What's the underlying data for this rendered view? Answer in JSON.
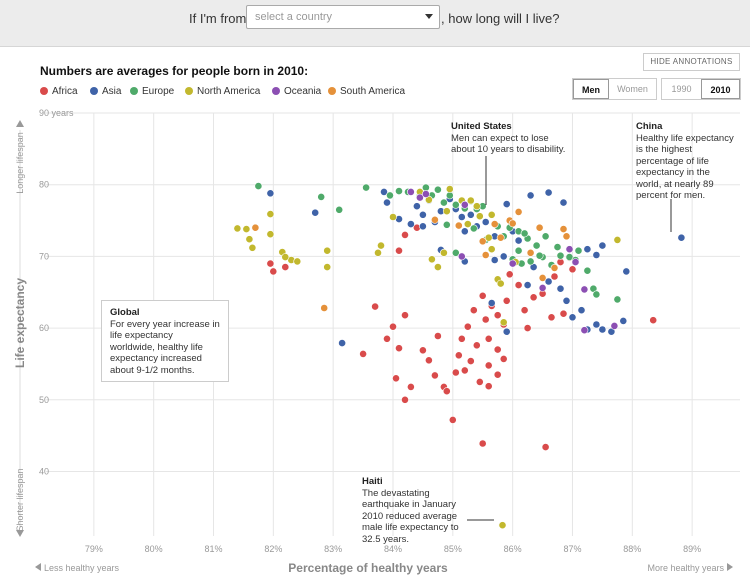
{
  "header": {
    "prefix": "If I'm from",
    "select_placeholder": "select a country",
    "suffix": ", how long will I live?"
  },
  "subtitle": "Numbers are averages for people born in 2010:",
  "controls": {
    "hide_annotations": "HIDE ANNOTATIONS",
    "sex": [
      "Men",
      "Women"
    ],
    "sex_selected": "Men",
    "years": [
      "1990",
      "2010"
    ],
    "year_selected": "2010"
  },
  "colors": {
    "Africa": "#d94b4b",
    "Asia": "#3f63a8",
    "Europe": "#4faa6a",
    "North America": "#c2b82e",
    "Oceania": "#8c4fb3",
    "South America": "#e5913a"
  },
  "annotations": {
    "us": {
      "title": "United States",
      "text": "Men can expect to lose about 10 years to disability."
    },
    "china": {
      "title": "China",
      "text": "Healthy life expectancy is the highest percentage of life expectancy in the world, at nearly 89 percent for men."
    },
    "global": {
      "title": "Global",
      "text": "For every year increase in life expectancy worldwide, healthy life expectancy increased about 9-1/2 months."
    },
    "haiti": {
      "title": "Haiti",
      "text": "The devastating earthquake in January 2010 reduced average male life expectancy to 32.5 years."
    }
  },
  "chart_data": {
    "type": "scatter",
    "xlabel": "Percentage of healthy years",
    "ylabel": "Life expectancy",
    "x_left_note": "Less healthy years",
    "x_right_note": "More healthy years",
    "y_top_note": "Longer lifespan",
    "y_bottom_note": "Shorter lifespan",
    "xlim": [
      78.2,
      89.8
    ],
    "ylim": [
      31,
      90
    ],
    "xticks": [
      79,
      80,
      81,
      82,
      83,
      84,
      85,
      86,
      87,
      88,
      89
    ],
    "xtick_labels": [
      "79%",
      "80%",
      "81%",
      "82%",
      "83%",
      "84%",
      "85%",
      "86%",
      "87%",
      "88%",
      "89%"
    ],
    "yticks": [
      40,
      50,
      60,
      70,
      80,
      90
    ],
    "ytick_labels": [
      "40",
      "50",
      "60",
      "70",
      "80",
      "90 years"
    ],
    "legend": [
      "Africa",
      "Asia",
      "Europe",
      "North America",
      "Oceania",
      "South America"
    ],
    "series": [
      {
        "name": "Africa",
        "points": [
          [
            81.95,
            69.0
          ],
          [
            82.2,
            68.5
          ],
          [
            82.0,
            67.9
          ],
          [
            83.7,
            63.0
          ],
          [
            83.5,
            56.4
          ],
          [
            83.9,
            58.5
          ],
          [
            84.0,
            60.2
          ],
          [
            84.1,
            57.2
          ],
          [
            84.2,
            61.8
          ],
          [
            84.05,
            53.0
          ],
          [
            84.3,
            51.8
          ],
          [
            84.5,
            56.9
          ],
          [
            84.6,
            55.5
          ],
          [
            84.75,
            58.9
          ],
          [
            84.2,
            50.0
          ],
          [
            84.85,
            51.8
          ],
          [
            84.9,
            51.2
          ],
          [
            84.7,
            53.4
          ],
          [
            85.05,
            53.8
          ],
          [
            85.2,
            54.1
          ],
          [
            85.1,
            56.2
          ],
          [
            85.3,
            55.4
          ],
          [
            85.15,
            58.5
          ],
          [
            85.4,
            57.6
          ],
          [
            85.6,
            58.5
          ],
          [
            85.75,
            57.0
          ],
          [
            85.25,
            60.2
          ],
          [
            85.55,
            61.2
          ],
          [
            85.65,
            63.1
          ],
          [
            85.85,
            60.5
          ],
          [
            85.75,
            61.8
          ],
          [
            85.9,
            63.8
          ],
          [
            85.35,
            62.5
          ],
          [
            85.5,
            64.5
          ],
          [
            85.0,
            47.2
          ],
          [
            85.5,
            43.9
          ],
          [
            85.6,
            54.8
          ],
          [
            85.75,
            53.5
          ],
          [
            85.85,
            55.7
          ],
          [
            85.6,
            51.9
          ],
          [
            86.55,
            43.4
          ],
          [
            85.45,
            52.5
          ],
          [
            86.2,
            62.5
          ],
          [
            86.35,
            64.3
          ],
          [
            86.5,
            64.8
          ],
          [
            86.1,
            66.0
          ],
          [
            85.95,
            67.5
          ],
          [
            86.7,
            67.2
          ],
          [
            86.65,
            61.5
          ],
          [
            88.35,
            61.1
          ],
          [
            86.85,
            62.0
          ],
          [
            86.25,
            60.0
          ],
          [
            86.8,
            69.2
          ],
          [
            86.95,
            69.8
          ],
          [
            87.0,
            68.2
          ],
          [
            84.4,
            74.0
          ],
          [
            84.2,
            73.0
          ],
          [
            84.1,
            70.8
          ]
        ]
      },
      {
        "name": "Asia",
        "points": [
          [
            81.95,
            78.8
          ],
          [
            82.7,
            76.1
          ],
          [
            83.15,
            57.9
          ],
          [
            83.85,
            79.0
          ],
          [
            83.9,
            77.5
          ],
          [
            84.1,
            75.2
          ],
          [
            84.3,
            74.5
          ],
          [
            84.4,
            77.0
          ],
          [
            84.5,
            75.8
          ],
          [
            84.6,
            77.8
          ],
          [
            84.7,
            74.8
          ],
          [
            84.8,
            76.3
          ],
          [
            84.95,
            78.0
          ],
          [
            85.05,
            76.6
          ],
          [
            85.15,
            75.5
          ],
          [
            85.3,
            75.8
          ],
          [
            85.4,
            74.2
          ],
          [
            85.2,
            73.5
          ],
          [
            85.55,
            74.8
          ],
          [
            85.7,
            72.8
          ],
          [
            86.0,
            73.5
          ],
          [
            86.3,
            78.5
          ],
          [
            86.6,
            78.9
          ],
          [
            86.85,
            77.5
          ],
          [
            85.9,
            77.3
          ],
          [
            85.7,
            69.5
          ],
          [
            86.1,
            72.2
          ],
          [
            85.85,
            70.0
          ],
          [
            86.35,
            68.5
          ],
          [
            86.6,
            66.5
          ],
          [
            86.8,
            65.5
          ],
          [
            86.9,
            63.8
          ],
          [
            87.0,
            61.5
          ],
          [
            87.15,
            62.5
          ],
          [
            87.25,
            59.8
          ],
          [
            87.4,
            60.5
          ],
          [
            87.5,
            59.8
          ],
          [
            87.65,
            59.5
          ],
          [
            87.85,
            61.0
          ],
          [
            87.9,
            67.9
          ],
          [
            87.4,
            70.2
          ],
          [
            87.05,
            69.5
          ],
          [
            87.25,
            71.0
          ],
          [
            87.5,
            71.5
          ],
          [
            85.65,
            63.5
          ],
          [
            85.9,
            59.5
          ],
          [
            86.25,
            66.0
          ],
          [
            85.2,
            69.3
          ],
          [
            84.8,
            70.9
          ],
          [
            84.5,
            74.2
          ],
          [
            88.82,
            72.6
          ]
        ]
      },
      {
        "name": "Europe",
        "points": [
          [
            81.75,
            79.8
          ],
          [
            82.8,
            78.3
          ],
          [
            83.1,
            76.5
          ],
          [
            83.55,
            79.6
          ],
          [
            83.95,
            78.5
          ],
          [
            84.1,
            79.1
          ],
          [
            84.25,
            79.0
          ],
          [
            84.45,
            78.5
          ],
          [
            84.55,
            79.6
          ],
          [
            84.65,
            78.5
          ],
          [
            84.75,
            79.3
          ],
          [
            84.85,
            77.5
          ],
          [
            84.95,
            78.5
          ],
          [
            85.05,
            77.2
          ],
          [
            85.2,
            76.7
          ],
          [
            85.3,
            77.7
          ],
          [
            85.4,
            76.6
          ],
          [
            85.5,
            77.0
          ],
          [
            85.65,
            75.8
          ],
          [
            85.75,
            74.2
          ],
          [
            85.95,
            74.0
          ],
          [
            86.1,
            73.5
          ],
          [
            86.25,
            72.5
          ],
          [
            86.4,
            71.5
          ],
          [
            86.1,
            70.8
          ],
          [
            86.0,
            69.6
          ],
          [
            86.15,
            69.0
          ],
          [
            86.3,
            69.3
          ],
          [
            86.5,
            69.9
          ],
          [
            86.65,
            68.8
          ],
          [
            86.8,
            70.1
          ],
          [
            86.95,
            69.9
          ],
          [
            87.1,
            70.8
          ],
          [
            87.25,
            68.0
          ],
          [
            87.35,
            65.5
          ],
          [
            87.4,
            64.7
          ],
          [
            87.75,
            64.0
          ],
          [
            87.05,
            69.5
          ],
          [
            86.45,
            70.1
          ],
          [
            85.35,
            73.9
          ],
          [
            85.05,
            70.5
          ],
          [
            84.9,
            74.4
          ],
          [
            85.55,
            72.3
          ],
          [
            85.85,
            72.8
          ],
          [
            86.2,
            73.2
          ],
          [
            86.55,
            72.8
          ],
          [
            86.75,
            71.3
          ]
        ]
      },
      {
        "name": "North America",
        "points": [
          [
            81.4,
            73.9
          ],
          [
            81.55,
            73.8
          ],
          [
            81.6,
            72.4
          ],
          [
            81.65,
            71.2
          ],
          [
            81.95,
            75.9
          ],
          [
            81.95,
            73.1
          ],
          [
            82.15,
            70.6
          ],
          [
            82.3,
            69.5
          ],
          [
            82.2,
            69.9
          ],
          [
            82.4,
            69.3
          ],
          [
            82.9,
            70.8
          ],
          [
            82.9,
            68.5
          ],
          [
            84.0,
            75.5
          ],
          [
            83.8,
            71.5
          ],
          [
            83.75,
            70.5
          ],
          [
            84.45,
            79.0
          ],
          [
            84.6,
            77.9
          ],
          [
            84.9,
            76.3
          ],
          [
            84.95,
            79.4
          ],
          [
            85.15,
            77.8
          ],
          [
            85.3,
            77.8
          ],
          [
            85.4,
            77.0
          ],
          [
            85.45,
            75.6
          ],
          [
            85.25,
            74.5
          ],
          [
            85.65,
            75.8
          ],
          [
            85.6,
            72.6
          ],
          [
            85.65,
            71.0
          ],
          [
            85.75,
            66.8
          ],
          [
            85.8,
            66.2
          ],
          [
            85.85,
            60.8
          ],
          [
            84.75,
            68.5
          ],
          [
            84.65,
            69.6
          ],
          [
            84.85,
            70.5
          ],
          [
            86.05,
            69.2
          ],
          [
            87.75,
            72.3
          ],
          [
            85.83,
            32.5
          ]
        ]
      },
      {
        "name": "Oceania",
        "points": [
          [
            84.3,
            79.0
          ],
          [
            84.45,
            78.2
          ],
          [
            84.55,
            78.7
          ],
          [
            85.2,
            77.2
          ],
          [
            87.05,
            69.2
          ],
          [
            87.2,
            65.4
          ],
          [
            87.7,
            60.3
          ],
          [
            85.15,
            70.0
          ],
          [
            86.95,
            71.0
          ],
          [
            87.2,
            59.7
          ],
          [
            86.5,
            65.6
          ],
          [
            86.0,
            69.0
          ]
        ]
      },
      {
        "name": "South America",
        "points": [
          [
            81.7,
            74.0
          ],
          [
            82.85,
            62.8
          ],
          [
            84.7,
            75.1
          ],
          [
            85.1,
            74.3
          ],
          [
            85.5,
            72.1
          ],
          [
            85.7,
            74.5
          ],
          [
            85.95,
            75.0
          ],
          [
            86.1,
            76.2
          ],
          [
            86.0,
            74.6
          ],
          [
            86.45,
            74.0
          ],
          [
            86.85,
            73.8
          ],
          [
            86.9,
            72.8
          ],
          [
            86.7,
            68.4
          ],
          [
            86.5,
            67.0
          ],
          [
            85.8,
            72.6
          ],
          [
            86.3,
            70.5
          ],
          [
            85.55,
            70.2
          ]
        ]
      }
    ]
  }
}
